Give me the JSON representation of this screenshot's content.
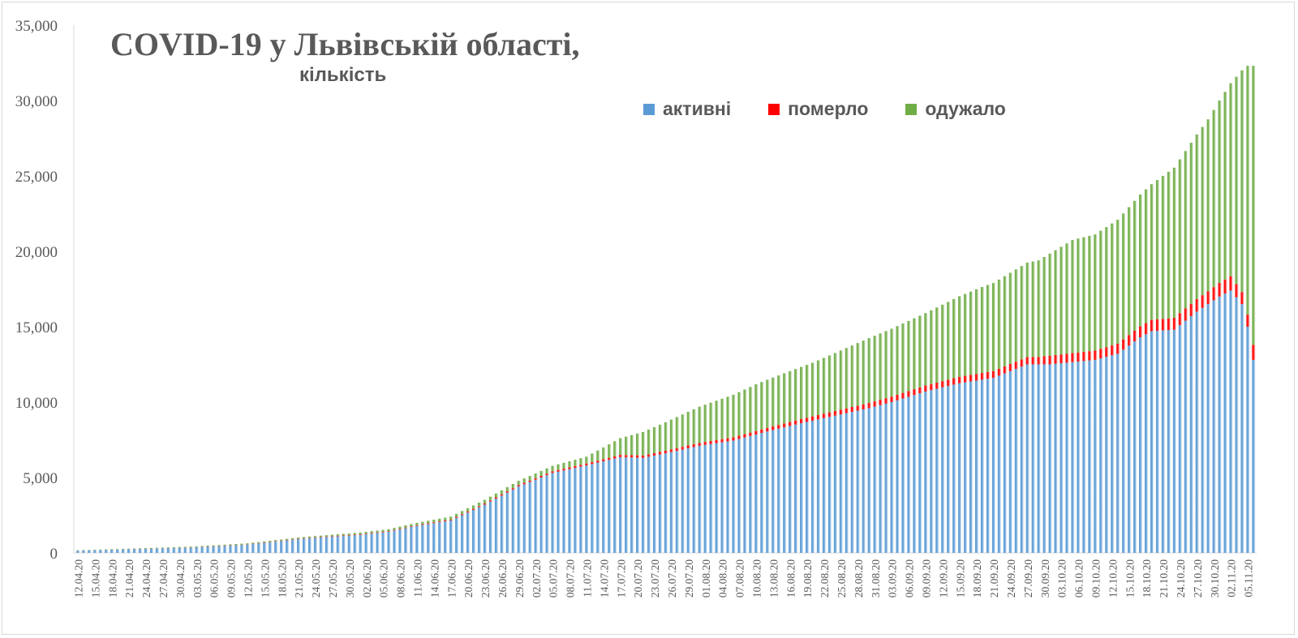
{
  "chart_data": {
    "type": "bar",
    "stacked": true,
    "title": "COVID-19 у Львівській області,",
    "subtitle": "кількість",
    "legend_position": "top-right",
    "ylim": [
      0,
      35000
    ],
    "yticks": [
      0,
      5000,
      10000,
      15000,
      20000,
      25000,
      30000,
      35000
    ],
    "ytick_labels": [
      "0",
      "5,000",
      "10,000",
      "15,000",
      "20,000",
      "25,000",
      "30,000",
      "35,000"
    ],
    "x_start": "12.04.20",
    "x_end": "06.11.20",
    "x_tick_labels": [
      "12.04.20",
      "15.04.20",
      "18.04.20",
      "21.04.20",
      "24.04.20",
      "27.04.20",
      "30.04.20",
      "03.05.20",
      "06.05.20",
      "09.05.20",
      "12.05.20",
      "15.05.20",
      "18.05.20",
      "21.05.20",
      "24.05.20",
      "27.05.20",
      "30.05.20",
      "02.06.20",
      "05.06.20",
      "08.06.20",
      "11.06.20",
      "14.06.20",
      "17.06.20",
      "20.06.20",
      "23.06.20",
      "26.06.20",
      "29.06.20",
      "02.07.20",
      "05.07.20",
      "08.07.20",
      "11.07.20",
      "14.07.20",
      "17.07.20",
      "20.07.20",
      "23.07.20",
      "26.07.20",
      "29.07.20",
      "01.08.20",
      "04.08.20",
      "07.08.20",
      "10.08.20",
      "13.08.20",
      "16.08.20",
      "19.08.20",
      "22.08.20",
      "25.08.20",
      "28.08.20",
      "31.08.20",
      "03.09.20",
      "06.09.20",
      "09.09.20",
      "12.09.20",
      "15.09.20",
      "18.09.20",
      "21.09.20",
      "24.09.20",
      "27.09.20",
      "30.09.20",
      "03.10.20",
      "06.10.20",
      "09.10.20",
      "12.10.20",
      "15.10.20",
      "18.10.20",
      "21.10.20",
      "24.10.20",
      "27.10.20",
      "30.10.20",
      "02.11.20",
      "05.11.20"
    ],
    "series": [
      {
        "name": "активні",
        "color": "#5b9bd5",
        "anchors": [
          [
            0,
            150
          ],
          [
            10,
            250
          ],
          [
            20,
            350
          ],
          [
            30,
            550
          ],
          [
            40,
            950
          ],
          [
            50,
            1200
          ],
          [
            55,
            1400
          ],
          [
            60,
            1800
          ],
          [
            66,
            2150
          ],
          [
            72,
            3200
          ],
          [
            78,
            4400
          ],
          [
            84,
            5300
          ],
          [
            90,
            5800
          ],
          [
            96,
            6350
          ],
          [
            100,
            6300
          ],
          [
            104,
            6600
          ],
          [
            110,
            7100
          ],
          [
            116,
            7450
          ],
          [
            122,
            8050
          ],
          [
            128,
            8600
          ],
          [
            134,
            9100
          ],
          [
            140,
            9600
          ],
          [
            144,
            10000
          ],
          [
            150,
            10700
          ],
          [
            156,
            11250
          ],
          [
            162,
            11600
          ],
          [
            168,
            12500
          ],
          [
            172,
            12500
          ],
          [
            176,
            12650
          ],
          [
            180,
            12800
          ],
          [
            184,
            13200
          ],
          [
            188,
            14300
          ],
          [
            190,
            14700
          ],
          [
            194,
            14800
          ],
          [
            198,
            16000
          ],
          [
            202,
            17000
          ],
          [
            204,
            17400
          ],
          [
            206,
            16500
          ],
          [
            207,
            15000
          ],
          [
            208,
            12800
          ]
        ]
      },
      {
        "name": "померло",
        "color": "#ff0000",
        "anchors": [
          [
            0,
            2
          ],
          [
            30,
            20
          ],
          [
            60,
            45
          ],
          [
            90,
            130
          ],
          [
            120,
            230
          ],
          [
            150,
            400
          ],
          [
            170,
            500
          ],
          [
            172,
            580
          ],
          [
            180,
            620
          ],
          [
            190,
            750
          ],
          [
            200,
            850
          ],
          [
            204,
            950
          ],
          [
            206,
            800
          ],
          [
            207,
            800
          ],
          [
            208,
            1000
          ]
        ]
      },
      {
        "name": "одужало",
        "color": "#70ad47",
        "anchors": [
          [
            0,
            20
          ],
          [
            20,
            50
          ],
          [
            40,
            80
          ],
          [
            60,
            150
          ],
          [
            80,
            300
          ],
          [
            90,
            450
          ],
          [
            100,
            1550
          ],
          [
            110,
            2400
          ],
          [
            120,
            3100
          ],
          [
            130,
            3550
          ],
          [
            140,
            4300
          ],
          [
            150,
            4800
          ],
          [
            160,
            5700
          ],
          [
            170,
            6400
          ],
          [
            176,
            7500
          ],
          [
            180,
            7700
          ],
          [
            190,
            9000
          ],
          [
            200,
            11400
          ],
          [
            204,
            12800
          ],
          [
            206,
            14700
          ],
          [
            207,
            16500
          ],
          [
            208,
            18500
          ]
        ]
      }
    ]
  }
}
